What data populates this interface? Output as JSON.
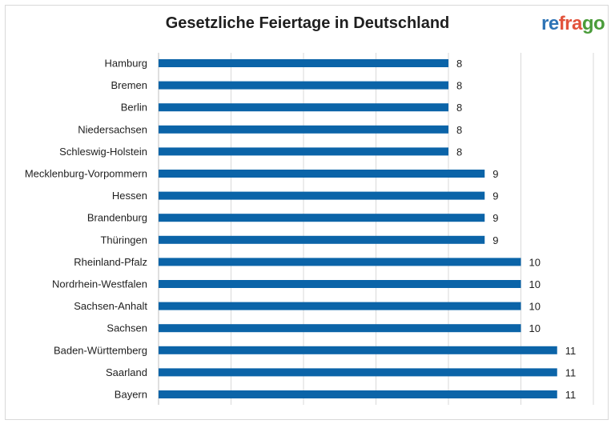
{
  "logo": {
    "part1": "re",
    "part2": "fra",
    "part3": "go"
  },
  "colors": {
    "bar": "#0b64a8",
    "grid": "#d9d9d9",
    "axis": "#bfbfbf"
  },
  "chart_data": {
    "type": "bar",
    "orientation": "horizontal",
    "title": "Gesetzliche Feiertage in Deutschland",
    "xlabel": "",
    "ylabel": "",
    "xlim": [
      0,
      12
    ],
    "grid": true,
    "categories": [
      "Hamburg",
      "Bremen",
      "Berlin",
      "Niedersachsen",
      "Schleswig-Holstein",
      "Mecklenburg-Vorpommern",
      "Hessen",
      "Brandenburg",
      "Thüringen",
      "Rheinland-Pfalz",
      "Nordrhein-Westfalen",
      "Sachsen-Anhalt",
      "Sachsen",
      "Baden-Württemberg",
      "Saarland",
      "Bayern"
    ],
    "values": [
      8,
      8,
      8,
      8,
      8,
      9,
      9,
      9,
      9,
      10,
      10,
      10,
      10,
      11,
      11,
      11
    ]
  }
}
